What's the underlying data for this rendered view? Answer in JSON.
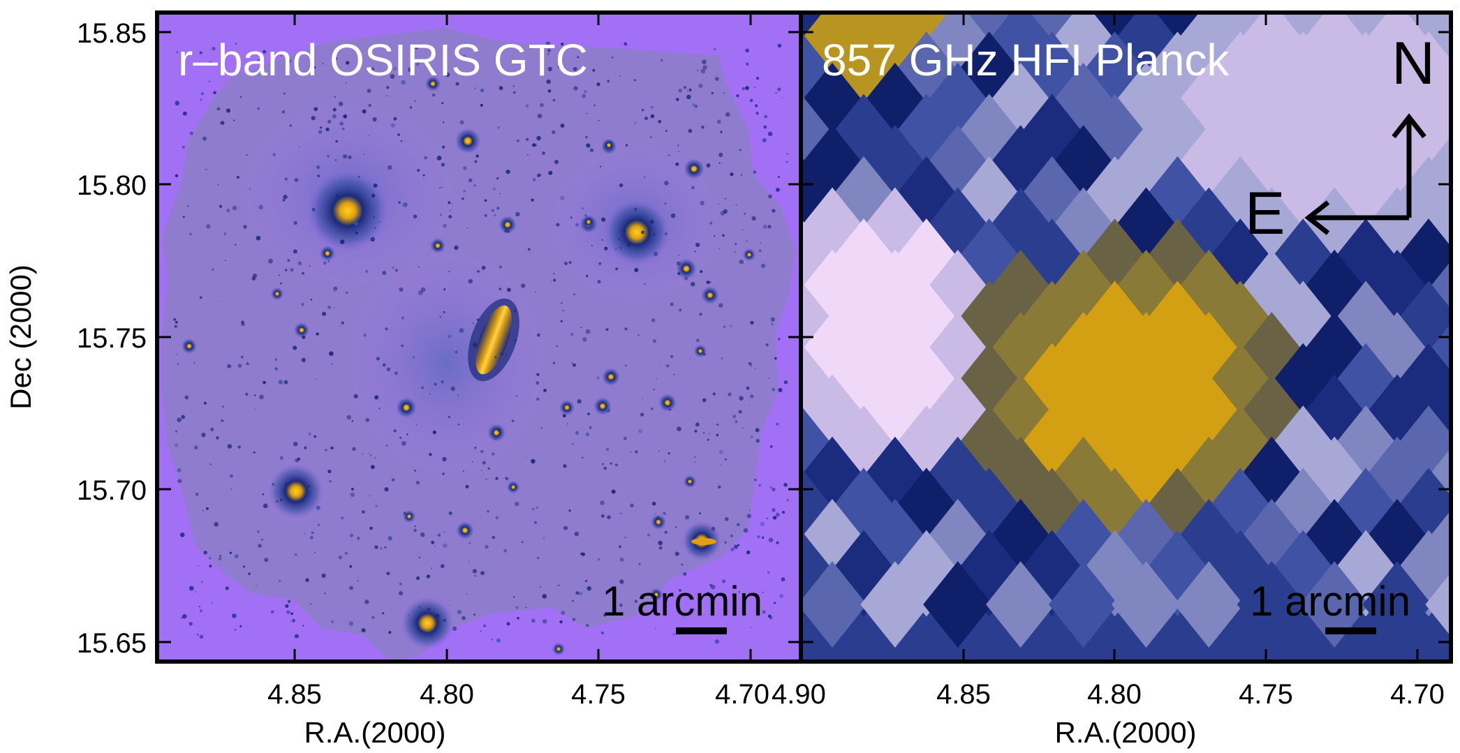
{
  "figure": {
    "colors": {
      "background": "#a170f5",
      "dark": "#0f1f6a",
      "mid": "#2b3d8f",
      "light": "#c9b0ee",
      "pale": "#f0d8f8",
      "gold": "#d2a012",
      "olive": "#6a6244"
    }
  },
  "left_panel": {
    "title": "r–band OSIRIS GTC",
    "scale_bar_label": "1 arcmin",
    "x_axis": {
      "label": "R.A.(2000)",
      "ticks": [
        "4.85",
        "4.80",
        "4.75",
        "4.70"
      ]
    },
    "y_axis": {
      "label": "Dec (2000)",
      "ticks": [
        "15.85",
        "15.80",
        "15.75",
        "15.70",
        "15.65"
      ]
    }
  },
  "right_panel": {
    "title": "857 GHz HFI Planck",
    "scale_bar_label": "1 arcmin",
    "compass_north": "N",
    "compass_east": "E",
    "x_axis": {
      "label": "R.A.(2000)",
      "ticks": [
        "4.90",
        "4.85",
        "4.80",
        "4.75",
        "4.70"
      ]
    }
  }
}
